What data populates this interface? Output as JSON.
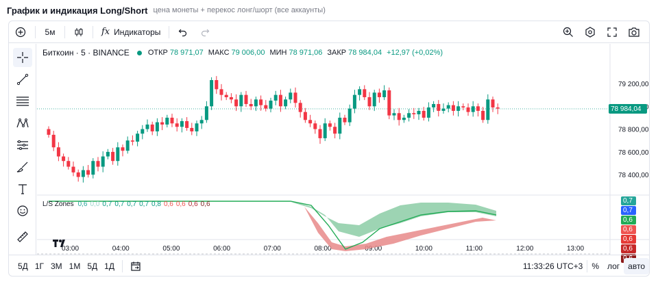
{
  "page": {
    "title": "График и индикация Long/Short",
    "subtitle": "цена монеты + перекос лонг/шорт (все аккаунты)"
  },
  "toolbar": {
    "add_icon": "plus-circle-icon",
    "interval": "5м",
    "candles_icon": "candles-icon",
    "fx_symbol": "fx",
    "indicators_label": "Индикаторы",
    "undo_icon": "undo-icon",
    "redo_icon": "redo-icon",
    "right_icons": [
      "search-zoom-icon",
      "settings-hex-icon",
      "fullscreen-icon",
      "camera-icon"
    ]
  },
  "symbol": {
    "name": "Биткоин · 5 · BINANCE",
    "open_label": "ОТКР",
    "open": "78 971,07",
    "high_label": "МАКС",
    "high": "79 006,00",
    "low_label": "МИН",
    "low": "78 971,06",
    "close_label": "ЗАКР",
    "close": "78 984,04",
    "change": "+12,97 (+0,02%)"
  },
  "indicator": {
    "name": "L/S Zones",
    "values": [
      {
        "text": "0,6",
        "color": "#26a69a"
      },
      {
        "text": "0,0",
        "color": "#9bd3cc"
      },
      {
        "text": "0,7",
        "color": "#089981"
      },
      {
        "text": "0,7",
        "color": "#089981"
      },
      {
        "text": "0,7",
        "color": "#089981"
      },
      {
        "text": "0,7",
        "color": "#089981"
      },
      {
        "text": "0,8",
        "color": "#089981"
      },
      {
        "text": "0,6",
        "color": "#ef5350"
      },
      {
        "text": "0,6",
        "color": "#ef5350"
      },
      {
        "text": "0,6",
        "color": "#b22833"
      },
      {
        "text": "0,6",
        "color": "#7b1f1f"
      }
    ]
  },
  "price_axis": {
    "ticks": [
      "79 200,00",
      "79 000,00",
      "78 800,00",
      "78 600,00",
      "78 400,00"
    ],
    "current": "78 984,04"
  },
  "indicator_axis_tags": [
    {
      "text": "0,7",
      "color": "#26a69a"
    },
    {
      "text": "0,7",
      "color": "#2962ff"
    },
    {
      "text": "0,6",
      "color": "#22ab56"
    },
    {
      "text": "0,6",
      "color": "#ef5350"
    },
    {
      "text": "0,6",
      "color": "#e53935"
    },
    {
      "text": "0,6",
      "color": "#c62828"
    },
    {
      "text": "0,6",
      "color": "#8e1b1b"
    }
  ],
  "time_axis": {
    "ticks": [
      "03:00",
      "04:00",
      "05:00",
      "06:00",
      "07:00",
      "08:00",
      "09:00",
      "10:00",
      "11:00",
      "12:00",
      "13:00"
    ]
  },
  "bottombar": {
    "ranges": [
      "5Д",
      "1Г",
      "3М",
      "1М",
      "5Д",
      "1Д"
    ],
    "calendar_icon": "calendar-range-icon",
    "clock": "11:33:26 UTC+3",
    "percent": "%",
    "log": "лог",
    "auto": "авто"
  },
  "colors": {
    "up": "#089981",
    "down": "#f23645",
    "accent": "#2962ff"
  }
}
